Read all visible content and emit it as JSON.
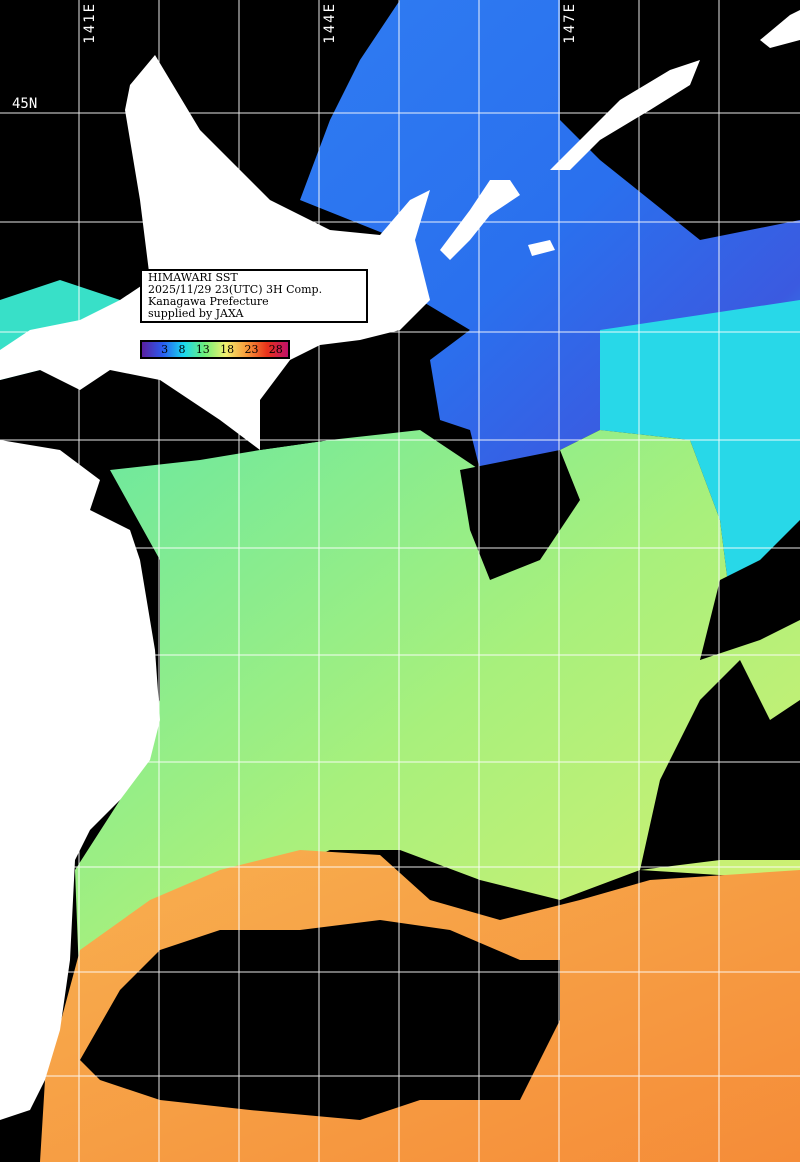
{
  "info": {
    "title": "HIMAWARI SST",
    "datetime": "2025/11/29 23(UTC) 3H Comp.",
    "organization": "Kanagawa Prefecture",
    "credit": "supplied by JAXA"
  },
  "legend": {
    "labels": [
      "3",
      "8",
      "13",
      "18",
      "23",
      "28"
    ],
    "colors": [
      "#5a1fa0",
      "#2a5cf0",
      "#19d8f0",
      "#6ff07a",
      "#f0f070",
      "#f89a3a",
      "#e8321a",
      "#c0106a"
    ]
  },
  "grid": {
    "lat_label": "45N",
    "lon_labels": [
      "141E",
      "144E",
      "147E"
    ]
  },
  "colors": {
    "land": "#ffffff",
    "cloud": "#000000",
    "cold": "#2a7cf0",
    "mid": "#8ef08a",
    "warm": "#f89a48"
  }
}
